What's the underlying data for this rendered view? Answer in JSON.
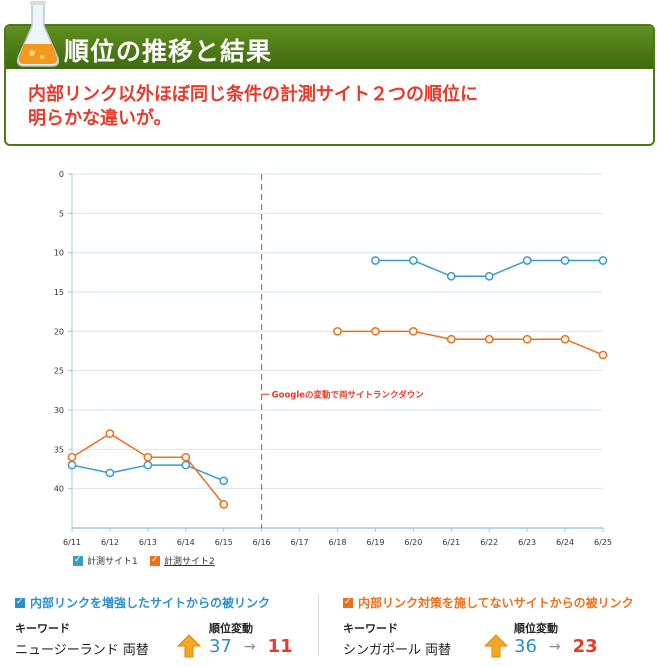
{
  "banner": {
    "title": "順位の推移と結果",
    "subtitle_line1": "内部リンク以外ほぼ同じ条件の計測サイト２つの順位に",
    "subtitle_line2": "明らかな違いが。"
  },
  "chart_data": {
    "type": "line",
    "categories": [
      "6/11",
      "6/12",
      "6/13",
      "6/14",
      "6/15",
      "6/16",
      "6/17",
      "6/18",
      "6/19",
      "6/20",
      "6/21",
      "6/22",
      "6/23",
      "6/24",
      "6/25"
    ],
    "ylim": [
      0,
      45
    ],
    "y_inverted": true,
    "yticks": [
      0,
      5,
      10,
      15,
      20,
      25,
      30,
      35,
      40
    ],
    "series": [
      {
        "name": "計測サイト1",
        "color": "#3a9ac9",
        "values": [
          37,
          38,
          37,
          37,
          39,
          null,
          null,
          null,
          11,
          11,
          13,
          13,
          11,
          11,
          11
        ]
      },
      {
        "name": "計測サイト2",
        "color": "#ec6f1c",
        "values": [
          36,
          33,
          36,
          36,
          42,
          null,
          null,
          20,
          20,
          20,
          21,
          21,
          21,
          21,
          23
        ]
      }
    ],
    "annotation": {
      "x": "6/16",
      "text": "Googleの変動で両サイトランクダウン",
      "color": "#e8392b"
    }
  },
  "legend": {
    "site1": "計測サイト1",
    "site2": "計測サイト2"
  },
  "panels": {
    "left": {
      "title": "内部リンクを増強したサイトからの被リンク",
      "title_color": "#2b8fc9",
      "kw_label": "キーワード",
      "kw_value": "ニュージーランド 両替",
      "rank_label": "順位変動",
      "rank_from": "37",
      "arrow": "→",
      "rank_to": "11"
    },
    "right": {
      "title": "内部リンク対策を施してないサイトからの被リンク",
      "title_color": "#ec6f1c",
      "kw_label": "キーワード",
      "kw_value": "シンガポール 両替",
      "rank_label": "順位変動",
      "rank_from": "36",
      "arrow": "→",
      "rank_to": "23"
    }
  }
}
